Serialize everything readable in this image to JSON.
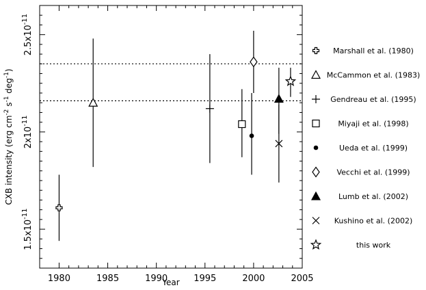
{
  "chart_data": {
    "type": "scatter",
    "xlabel": "Year",
    "ylabel": "CXB intensity (erg cm^-2 s^-1 deg^-1)",
    "xlim": [
      1978,
      2005
    ],
    "ylim": [
      1.3e-11,
      2.65e-11
    ],
    "x_ticks": [
      1980,
      1985,
      1990,
      1995,
      2000,
      2005
    ],
    "y_ticks": [
      1.5e-11,
      2e-11,
      2.5e-11
    ],
    "y_tick_labels": [
      {
        "mantissa": "1.5x10",
        "exponent": "-11"
      },
      {
        "mantissa": "2x10",
        "exponent": "-11"
      },
      {
        "mantissa": "2.5x10",
        "exponent": "-11"
      }
    ],
    "grid": false,
    "legend_position": "right",
    "reference_lines": [
      {
        "y": 2.35e-11,
        "style": "dotted"
      },
      {
        "y": 2.16e-11,
        "style": "dotted"
      }
    ],
    "series": [
      {
        "name": "Marshall et al. (1980)",
        "marker": "plus-open",
        "x": 1980.0,
        "y": 1.61e-11,
        "yerr_low": 1.44e-11,
        "yerr_high": 1.78e-11
      },
      {
        "name": "McCammon et al. (1983)",
        "marker": "triangle-open",
        "x": 1983.5,
        "y": 2.15e-11,
        "yerr_low": 1.82e-11,
        "yerr_high": 2.48e-11
      },
      {
        "name": "Gendreau et al. (1995)",
        "marker": "plus",
        "x": 1995.5,
        "y": 2.12e-11,
        "yerr_low": 1.84e-11,
        "yerr_high": 2.4e-11
      },
      {
        "name": "Miyaji et al. (1998)",
        "marker": "square-open",
        "x": 1998.8,
        "y": 2.04e-11,
        "yerr_low": 1.87e-11,
        "yerr_high": 2.22e-11
      },
      {
        "name": "Ueda et al. (1999)",
        "marker": "circle-filled",
        "x": 1999.8,
        "y": 1.98e-11,
        "yerr_low": 1.78e-11,
        "yerr_high": 2.2e-11
      },
      {
        "name": "Vecchi et al. (1999)",
        "marker": "diamond-open",
        "x": 2000.0,
        "y": 2.36e-11,
        "yerr_low": 2.2e-11,
        "yerr_high": 2.52e-11
      },
      {
        "name": "Lumb et al. (2002)",
        "marker": "triangle-filled",
        "x": 2002.6,
        "y": 2.17e-11,
        "yerr_low": 1.99e-11,
        "yerr_high": 2.33e-11
      },
      {
        "name": "Kushino et al. (2002)",
        "marker": "x",
        "x": 2002.6,
        "y": 1.94e-11,
        "yerr_low": 1.74e-11,
        "yerr_high": 2.14e-11
      },
      {
        "name": "this work",
        "marker": "star-open",
        "x": 2003.8,
        "y": 2.26e-11,
        "yerr_low": 2.18e-11,
        "yerr_high": 2.33e-11
      }
    ]
  }
}
